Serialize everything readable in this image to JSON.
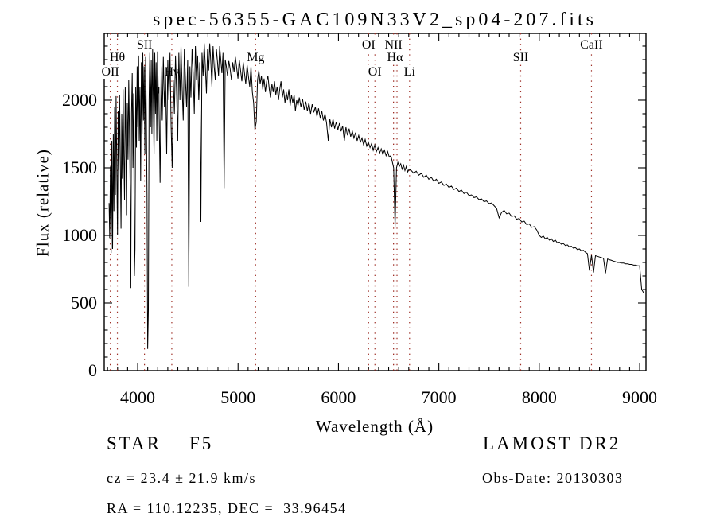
{
  "annotations": {
    "classification": "STAR    F5",
    "survey": "LAMOST DR2",
    "cz": "cz = 23.4 ± 21.9 km/s",
    "obs_date": "Obs-Date: 20130303",
    "coords": "RA = 110.12235, DEC =  33.96454"
  },
  "chart_data": {
    "type": "line",
    "title": "spec-56355-GAC109N33V2_sp04-207.fits",
    "xlabel": "Wavelength (Å)",
    "ylabel": "Flux (relative)",
    "xlim": [
      3667,
      9063
    ],
    "ylim": [
      0,
      2494
    ],
    "x_major_ticks": [
      4000,
      5000,
      6000,
      7000,
      8000,
      9000
    ],
    "x_minor_step": 100,
    "y_major_ticks": [
      0,
      500,
      1000,
      1500,
      2000
    ],
    "y_minor_step": 100,
    "grid": false,
    "line_color": "#000000",
    "marker_line_color": "#9e2f26",
    "spectral_line_markers": [
      {
        "wavelength": 3727,
        "label": "OII",
        "row": 2
      },
      {
        "wavelength": 3798,
        "label": "Hθ",
        "row": 1
      },
      {
        "wavelength": 4068,
        "label": "SII",
        "row": 0
      },
      {
        "wavelength": 4340,
        "label": "Hγ",
        "row": 2
      },
      {
        "wavelength": 5175,
        "label": "Mg",
        "row": 1
      },
      {
        "wavelength": 6300,
        "label": "OI",
        "row": 0
      },
      {
        "wavelength": 6363,
        "label": "OI",
        "row": 2
      },
      {
        "wavelength": 6548,
        "label": "NII",
        "row": 0
      },
      {
        "wavelength": 6563,
        "label": "Hα",
        "row": 1
      },
      {
        "wavelength": 6583,
        "label": "",
        "row": 0
      },
      {
        "wavelength": 6708,
        "label": "Li",
        "row": 2
      },
      {
        "wavelength": 7815,
        "label": "SII",
        "row": 1
      },
      {
        "wavelength": 8520,
        "label": "CaII",
        "row": 0
      }
    ],
    "series": [
      {
        "name": "flux",
        "segments": [
          {
            "start": 3715,
            "step": 7,
            "flux": [
              1240,
              980,
              1510,
              870,
              1700,
              900,
              1750,
              1180,
              1950,
              1300,
              2030,
              1500,
              1000,
              1920,
              1480,
              2040,
              1560,
              1050,
              1900,
              1420,
              2080,
              1600,
              1260,
              2100,
              1700,
              1150,
              1980,
              1560,
              2150,
              1780,
              1350,
              610,
              1900,
              2200,
              1500,
              2050,
              700,
              900,
              2100,
              1650,
              2250,
              1800,
              2330,
              1700,
              2100,
              1400,
              2280,
              1750,
              2350,
              1850,
              2250,
              1600,
              2320,
              1900,
              1300,
              160,
              450,
              2000,
              2350,
              1800,
              2300,
              1750,
              2380,
              2000,
              1600,
              2350,
              1900,
              2280,
              1700,
              2360,
              2050,
              2100
            ]
          },
          {
            "start": 4212,
            "step": 11,
            "flux": [
              2000,
              1390,
              2250,
              1850,
              2320,
              1950,
              2180,
              1600,
              2300,
              2000,
              2350,
              1800,
              1500,
              2150,
              1900,
              2330,
              2060,
              1700,
              2350,
              2000,
              2400,
              2100,
              1850,
              2380,
              2150,
              1950,
              2300,
              620,
              2250,
              2020,
              2380,
              2200,
              1900,
              2400,
              2150,
              2330,
              2000,
              2280,
              1100,
              2350,
              2180,
              2420,
              2250,
              2050,
              2380,
              2220,
              2420,
              2280,
              2100,
              2400,
              2250,
              2150,
              2380,
              2280,
              2180,
              2400,
              2300,
              2200,
              2350,
              1350,
              2300,
              2250
            ]
          },
          {
            "start": 4895,
            "step": 13,
            "flux": [
              2180,
              2290,
              2230,
              2150,
              2280,
              2210,
              2320,
              2240,
              2160,
              2300,
              2220,
              2140,
              2280,
              2200,
              2120,
              2260,
              2180,
              2100,
              2250,
              2060,
              1980,
              1780,
              1840,
              2150,
              2220,
              2120,
              2180,
              2080,
              2160,
              2060,
              2140,
              2180,
              2080,
              2020,
              2120,
              2060,
              2140,
              2040,
              2100,
              2000,
              2080,
              2140,
              2020,
              2080,
              1980,
              2060,
              2000,
              2080,
              1960,
              2040,
              1980,
              2040,
              1920,
              2000,
              1960
            ]
          },
          {
            "start": 5610,
            "step": 16,
            "flux": [
              2020,
              1950,
              2010,
              1930,
              1990,
              1920,
              1980,
              1900,
              1970,
              1910,
              1950,
              1880,
              1940,
              1870,
              1920,
              1850,
              1900,
              1830,
              1700,
              1860,
              1800,
              1860,
              1790,
              1840,
              1780,
              1830,
              1770,
              1810,
              1700,
              1800,
              1740,
              1790,
              1730,
              1770,
              1720,
              1760,
              1700,
              1740,
              1690,
              1720,
              1670,
              1710,
              1660,
              1690,
              1650,
              1680,
              1630,
              1670,
              1620,
              1650,
              1610,
              1640,
              1600,
              1630,
              1590,
              1620,
              1580
            ]
          },
          {
            "start": 6522,
            "step": 14,
            "flux": [
              1590,
              1545,
              1500,
              1065,
              1500,
              1540,
              1510,
              1530,
              1490,
              1520,
              1480,
              1510,
              1470,
              1490
            ]
          },
          {
            "start": 6725,
            "step": 25,
            "flux": [
              1480,
              1460,
              1475,
              1445,
              1460,
              1430,
              1445,
              1415,
              1430,
              1400,
              1415,
              1385,
              1395,
              1370,
              1380,
              1355,
              1365,
              1340,
              1350,
              1325,
              1335,
              1310,
              1320,
              1295,
              1300,
              1280,
              1285,
              1265,
              1270,
              1250,
              1255,
              1235,
              1240,
              1220,
              1200,
              1130,
              1170,
              1185,
              1160,
              1165,
              1140,
              1145,
              1120,
              1125,
              1100,
              1105,
              1080,
              1085,
              1060,
              1065,
              1040
            ]
          },
          {
            "start": 8000,
            "step": 20,
            "flux": [
              1000,
              985,
              995,
              975,
              985,
              965,
              975,
              955,
              965,
              945,
              950,
              935,
              940,
              925,
              930,
              915,
              920,
              905,
              910,
              895,
              900,
              885,
              890,
              875,
              865,
              740,
              855,
              725,
              850,
              845,
              840,
              835,
              830,
              720,
              825,
              820,
              815,
              810,
              805,
              800,
              800,
              795,
              795,
              790,
              790,
              785,
              785,
              780,
              780,
              775,
              775,
              600,
              575
            ]
          }
        ]
      }
    ]
  }
}
